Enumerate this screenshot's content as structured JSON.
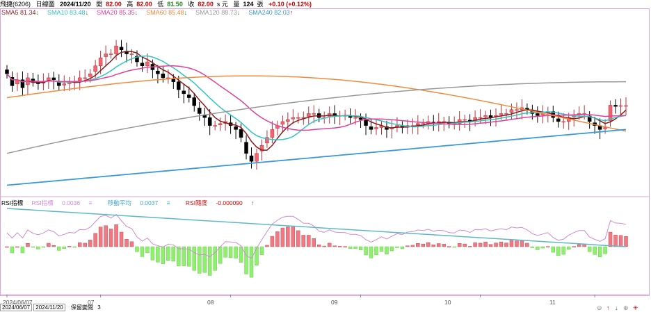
{
  "header": {
    "stock": "飛捷(6206)",
    "period": "日線圖",
    "date": "2024/11/20",
    "open_label": "開",
    "open": "82.00",
    "high_label": "高",
    "high": "82.00",
    "low_label": "低",
    "low": "81.50",
    "close_label": "收",
    "close": "82.00",
    "close_suffix": "s 元",
    "vol_label": "量",
    "vol": "124",
    "vol_unit": "張",
    "change": "+0.10 (+0.12%)"
  },
  "ma_legend": [
    {
      "label": "SMA5",
      "value": "81.34",
      "arrow": "↓",
      "color": "#8b1a1a",
      "arrow_color": "#1a8a1a"
    },
    {
      "label": "SMA10",
      "value": "83.48",
      "arrow": "↓",
      "color": "#2ec4c4",
      "arrow_color": "#1a8a1a"
    },
    {
      "label": "SMA20",
      "value": "85.35",
      "arrow": "↓",
      "color": "#e0409a",
      "arrow_color": "#1a8a1a"
    },
    {
      "label": "SMA60",
      "value": "85.48",
      "arrow": "↓",
      "color": "#f08a3c",
      "arrow_color": "#1a8a1a"
    },
    {
      "label": "SMA120",
      "value": "88.73",
      "arrow": "↓",
      "color": "#999999",
      "arrow_color": "#1a8a1a"
    },
    {
      "label": "SMA240",
      "value": "82.03",
      "arrow": "↑",
      "color": "#3a9ad9",
      "arrow_color": "#d40000"
    }
  ],
  "indicator": {
    "name": "RSI指標",
    "line1_label": "RSI指標",
    "line1_value": "0.0036",
    "line2_label": "移動平均",
    "line2_value": "0.0037",
    "line3_label": "RSI隨度",
    "line3_value": "-0.000090",
    "line3_arrow": "↑",
    "sym": "≡"
  },
  "x_labels": [
    "2024/06/07",
    "07",
    "08",
    "09",
    "10",
    "11"
  ],
  "bottom": {
    "start": "2024/06/07",
    "end": "2024/11/20",
    "keep_label": "保留變閱",
    "keep_value": "3"
  },
  "colors": {
    "up": "#f0666f",
    "down": "#000000",
    "hist_up": "#f07a84",
    "hist_down": "#8ef06e"
  },
  "chart_data": {
    "type": "candlestick",
    "closes": [
      90,
      87,
      88.5,
      86.5,
      89,
      88,
      87.5,
      88,
      89,
      88.5,
      87,
      87.5,
      88,
      88,
      89,
      89,
      90,
      92,
      94,
      95,
      95,
      97,
      96,
      95,
      95,
      93,
      92,
      93,
      91,
      90,
      89,
      89,
      88,
      86,
      85,
      84,
      82,
      80,
      79,
      77,
      77,
      77.5,
      78,
      77,
      76,
      74,
      70,
      68,
      70,
      72,
      74,
      76,
      77,
      78,
      78.5,
      79,
      79,
      79,
      80,
      80,
      79,
      79,
      80,
      79.5,
      79.5,
      79.5,
      79,
      79,
      78.5,
      77,
      76,
      76.5,
      77,
      76,
      76.5,
      77,
      76.5,
      77,
      77,
      77.5,
      77.5,
      78,
      77.5,
      78,
      78,
      77.5,
      77.5,
      78.5,
      78.5,
      78,
      79,
      79,
      79.5,
      79,
      79.5,
      80,
      80,
      81,
      81,
      81.5,
      81,
      80,
      79.5,
      80,
      80.5,
      79,
      78,
      78,
      79,
      79.5,
      80,
      80,
      78,
      77,
      76,
      76.5,
      82.1,
      81.8,
      82,
      82
    ]
  }
}
